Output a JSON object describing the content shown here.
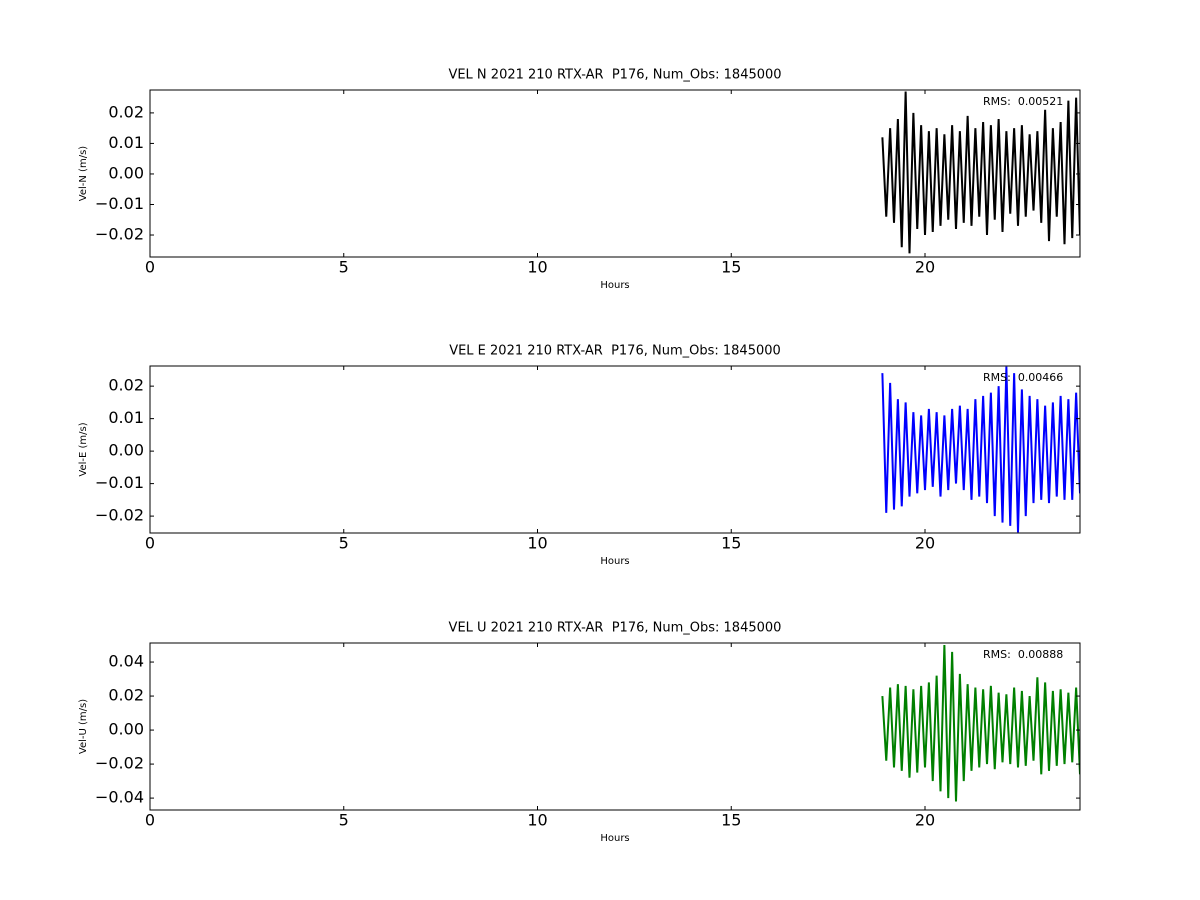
{
  "chart_data": [
    {
      "type": "line",
      "title": "VEL N 2021 210 RTX-AR  P176, Num_Obs: 1845000",
      "xlabel": "Hours",
      "ylabel": "Vel-N (m/s)",
      "annotation": "RMS:  0.00521",
      "annotation_color": "#0000ff",
      "color": "#000000",
      "xlim": [
        0,
        24
      ],
      "xticks": [
        0,
        5,
        10,
        15,
        20
      ],
      "ylim": [
        -0.0272,
        0.0275
      ],
      "yticks": [
        {
          "value": -0.02,
          "label": "−0.02"
        },
        {
          "value": -0.01,
          "label": "−0.01"
        },
        {
          "value": 0,
          "label": "0.00"
        },
        0.01,
        0.02
      ],
      "x": [
        18.9,
        19.0,
        19.1,
        19.2,
        19.3,
        19.4,
        19.5,
        19.6,
        19.7,
        19.8,
        19.9,
        20.0,
        20.1,
        20.2,
        20.3,
        20.4,
        20.5,
        20.6,
        20.7,
        20.8,
        20.9,
        21.0,
        21.1,
        21.2,
        21.3,
        21.4,
        21.5,
        21.6,
        21.7,
        21.8,
        21.9,
        22.0,
        22.1,
        22.2,
        22.3,
        22.4,
        22.5,
        22.6,
        22.7,
        22.8,
        22.9,
        23.0,
        23.1,
        23.2,
        23.3,
        23.4,
        23.5,
        23.6,
        23.7,
        23.8,
        23.9,
        24.0
      ],
      "values": [
        0.012,
        -0.014,
        0.015,
        -0.016,
        0.018,
        -0.024,
        0.027,
        -0.026,
        0.02,
        -0.018,
        0.016,
        -0.02,
        0.014,
        -0.019,
        0.015,
        -0.017,
        0.013,
        -0.015,
        0.016,
        -0.018,
        0.014,
        -0.016,
        0.019,
        -0.017,
        0.015,
        -0.014,
        0.017,
        -0.02,
        0.016,
        -0.015,
        0.018,
        -0.019,
        0.014,
        -0.013,
        0.015,
        -0.017,
        0.016,
        -0.014,
        0.013,
        -0.012,
        0.014,
        -0.016,
        0.021,
        -0.022,
        0.015,
        -0.014,
        0.017,
        -0.023,
        0.024,
        -0.021,
        0.025,
        -0.02
      ]
    },
    {
      "type": "line",
      "title": "VEL E 2021 210 RTX-AR  P176, Num_Obs: 1845000",
      "xlabel": "Hours",
      "ylabel": "Vel-E (m/s)",
      "annotation": "RMS:  0.00466",
      "annotation_color": "#0000ff",
      "color": "#0000ff",
      "xlim": [
        0,
        24
      ],
      "xticks": [
        0,
        5,
        10,
        15,
        20
      ],
      "ylim": [
        -0.0252,
        0.0262
      ],
      "yticks": [
        {
          "value": -0.02,
          "label": "−0.02"
        },
        {
          "value": -0.01,
          "label": "−0.01"
        },
        {
          "value": 0,
          "label": "0.00"
        },
        0.01,
        0.02
      ],
      "x": [
        18.9,
        19.0,
        19.1,
        19.2,
        19.3,
        19.4,
        19.5,
        19.6,
        19.7,
        19.8,
        19.9,
        20.0,
        20.1,
        20.2,
        20.3,
        20.4,
        20.5,
        20.6,
        20.7,
        20.8,
        20.9,
        21.0,
        21.1,
        21.2,
        21.3,
        21.4,
        21.5,
        21.6,
        21.7,
        21.8,
        21.9,
        22.0,
        22.1,
        22.2,
        22.3,
        22.4,
        22.5,
        22.6,
        22.7,
        22.8,
        22.9,
        23.0,
        23.1,
        23.2,
        23.3,
        23.4,
        23.5,
        23.6,
        23.7,
        23.8,
        23.9,
        24.0
      ],
      "values": [
        0.024,
        -0.019,
        0.021,
        -0.018,
        0.016,
        -0.017,
        0.015,
        -0.014,
        0.012,
        -0.013,
        0.011,
        -0.012,
        0.013,
        -0.011,
        0.012,
        -0.014,
        0.011,
        -0.012,
        0.013,
        -0.01,
        0.014,
        -0.012,
        0.013,
        -0.015,
        0.016,
        -0.014,
        0.017,
        -0.016,
        0.018,
        -0.02,
        0.02,
        -0.022,
        0.026,
        -0.023,
        0.024,
        -0.025,
        0.019,
        -0.02,
        0.017,
        -0.016,
        0.016,
        -0.015,
        0.014,
        -0.016,
        0.015,
        -0.014,
        0.017,
        -0.015,
        0.016,
        -0.015,
        0.018,
        -0.013
      ]
    },
    {
      "type": "line",
      "title": "VEL U 2021 210 RTX-AR  P176, Num_Obs: 1845000",
      "xlabel": "Hours",
      "ylabel": "Vel-U (m/s)",
      "annotation": "RMS:  0.00888",
      "annotation_color": "#0000ff",
      "color": "#008000",
      "xlim": [
        0,
        24
      ],
      "xticks": [
        0,
        5,
        10,
        15,
        20
      ],
      "ylim": [
        -0.047,
        0.0512
      ],
      "yticks": [
        {
          "value": -0.04,
          "label": "−0.04"
        },
        {
          "value": -0.02,
          "label": "−0.02"
        },
        {
          "value": 0,
          "label": "0.00"
        },
        0.02,
        0.04
      ],
      "x": [
        18.9,
        19.0,
        19.1,
        19.2,
        19.3,
        19.4,
        19.5,
        19.6,
        19.7,
        19.8,
        19.9,
        20.0,
        20.1,
        20.2,
        20.3,
        20.4,
        20.5,
        20.6,
        20.7,
        20.8,
        20.9,
        21.0,
        21.1,
        21.2,
        21.3,
        21.4,
        21.5,
        21.6,
        21.7,
        21.8,
        21.9,
        22.0,
        22.1,
        22.2,
        22.3,
        22.4,
        22.5,
        22.6,
        22.7,
        22.8,
        22.9,
        23.0,
        23.1,
        23.2,
        23.3,
        23.4,
        23.5,
        23.6,
        23.7,
        23.8,
        23.9,
        24.0
      ],
      "values": [
        0.02,
        -0.018,
        0.025,
        -0.022,
        0.027,
        -0.024,
        0.026,
        -0.028,
        0.024,
        -0.025,
        0.026,
        -0.022,
        0.028,
        -0.03,
        0.032,
        -0.036,
        0.05,
        -0.04,
        0.046,
        -0.042,
        0.033,
        -0.03,
        0.027,
        -0.024,
        0.025,
        -0.022,
        0.024,
        -0.02,
        0.026,
        -0.023,
        0.022,
        -0.019,
        0.021,
        -0.02,
        0.025,
        -0.022,
        0.023,
        -0.021,
        0.02,
        -0.018,
        0.031,
        -0.026,
        0.028,
        -0.024,
        0.023,
        -0.021,
        0.024,
        -0.02,
        0.022,
        -0.019,
        0.025,
        -0.026
      ]
    }
  ]
}
